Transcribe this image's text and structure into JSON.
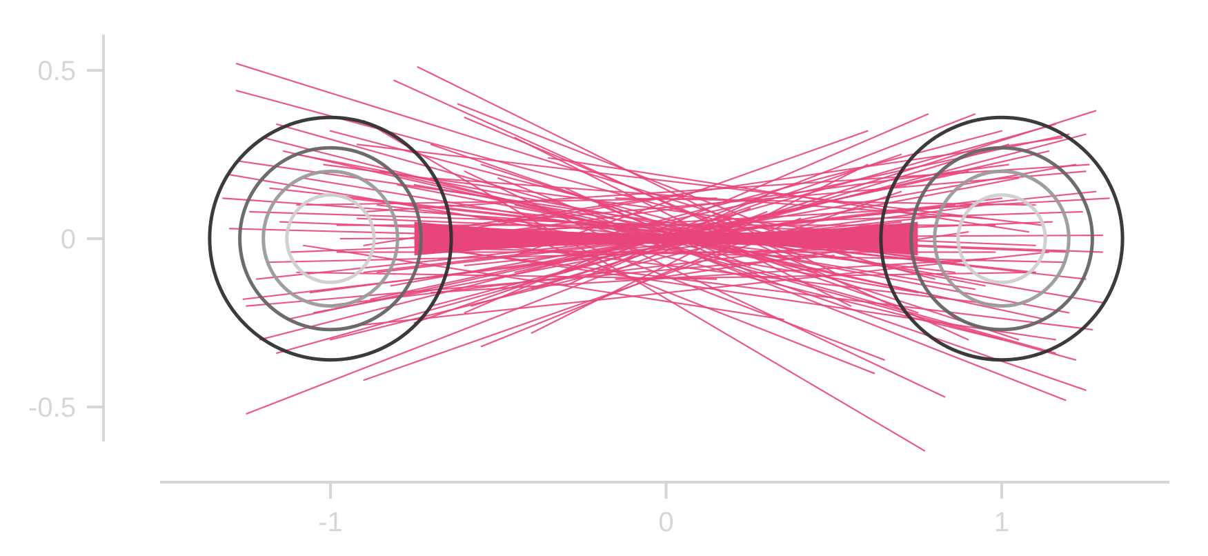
{
  "chart_data": {
    "type": "line",
    "title": "",
    "xlabel": "",
    "ylabel": "",
    "xlim": [
      -1.5,
      1.5
    ],
    "ylim": [
      -0.6,
      0.6
    ],
    "grid": false,
    "legend": "none",
    "xticks": [
      {
        "value": -1,
        "label": "-1"
      },
      {
        "value": 0,
        "label": "0"
      },
      {
        "value": 1,
        "label": "1"
      }
    ],
    "yticks": [
      {
        "value": 0.5,
        "label": "0.5"
      },
      {
        "value": 0,
        "label": "0"
      },
      {
        "value": -0.5,
        "label": "-0.5"
      }
    ],
    "colors": {
      "segments": "#e8457d",
      "axis": "#d6d6d6",
      "ring_outer": "#303030",
      "ring_mid": "#646464",
      "ring_inner": "#9a9a9a",
      "ring_innermost": "#cfcfcf"
    },
    "rings": [
      {
        "cx": -1,
        "cy": 0,
        "r": 0.36,
        "shade": "ring_outer"
      },
      {
        "cx": -1,
        "cy": 0,
        "r": 0.27,
        "shade": "ring_mid"
      },
      {
        "cx": -1,
        "cy": 0,
        "r": 0.2,
        "shade": "ring_inner"
      },
      {
        "cx": -1,
        "cy": 0,
        "r": 0.13,
        "shade": "ring_innermost"
      },
      {
        "cx": 1,
        "cy": 0,
        "r": 0.36,
        "shade": "ring_outer"
      },
      {
        "cx": 1,
        "cy": 0,
        "r": 0.27,
        "shade": "ring_mid"
      },
      {
        "cx": 1,
        "cy": 0,
        "r": 0.2,
        "shade": "ring_inner"
      },
      {
        "cx": 1,
        "cy": 0,
        "r": 0.13,
        "shade": "ring_innermost"
      }
    ],
    "segments": [
      {
        "x1": -1.28,
        "y1": 0.52,
        "x2": 0.55,
        "y2": -0.05
      },
      {
        "x1": -1.28,
        "y1": 0.44,
        "x2": 0.8,
        "y2": -0.12
      },
      {
        "x1": -0.74,
        "y1": 0.51,
        "x2": 0.5,
        "y2": -0.1
      },
      {
        "x1": -0.81,
        "y1": 0.47,
        "x2": 0.9,
        "y2": -0.3
      },
      {
        "x1": -1.25,
        "y1": -0.52,
        "x2": 0.3,
        "y2": 0.08
      },
      {
        "x1": -0.9,
        "y1": -0.42,
        "x2": 0.7,
        "y2": 0.14
      },
      {
        "x1": 0.77,
        "y1": -0.63,
        "x2": -0.9,
        "y2": 0.35
      },
      {
        "x1": 0.83,
        "y1": -0.47,
        "x2": -0.6,
        "y2": 0.2
      },
      {
        "x1": 1.25,
        "y1": -0.45,
        "x2": -0.2,
        "y2": 0.05
      },
      {
        "x1": 1.19,
        "y1": -0.48,
        "x2": -0.5,
        "y2": 0.18
      },
      {
        "x1": 1.28,
        "y1": 0.38,
        "x2": -0.4,
        "y2": -0.15
      },
      {
        "x1": 1.25,
        "y1": 0.31,
        "x2": -0.7,
        "y2": -0.2
      },
      {
        "x1": 0.78,
        "y1": 0.37,
        "x2": -0.6,
        "y2": -0.22
      },
      {
        "x1": 0.92,
        "y1": 0.37,
        "x2": -0.3,
        "y2": -0.1
      },
      {
        "x1": -1.32,
        "y1": 0.12,
        "x2": 0.4,
        "y2": 0.0
      },
      {
        "x1": -1.3,
        "y1": 0.03,
        "x2": 0.6,
        "y2": -0.02
      },
      {
        "x1": -1.26,
        "y1": -0.18,
        "x2": 0.7,
        "y2": 0.05
      },
      {
        "x1": -1.21,
        "y1": -0.3,
        "x2": 0.2,
        "y2": 0.06
      },
      {
        "x1": -1.27,
        "y1": 0.23,
        "x2": 0.9,
        "y2": -0.08
      },
      {
        "x1": -1.2,
        "y1": 0.3,
        "x2": 0.1,
        "y2": -0.03
      },
      {
        "x1": 1.32,
        "y1": 0.12,
        "x2": -0.5,
        "y2": 0.02
      },
      {
        "x1": 1.3,
        "y1": -0.04,
        "x2": -0.6,
        "y2": 0.03
      },
      {
        "x1": 1.27,
        "y1": -0.27,
        "x2": -0.7,
        "y2": -0.03
      },
      {
        "x1": 1.22,
        "y1": -0.36,
        "x2": -0.2,
        "y2": 0.03
      },
      {
        "x1": 1.26,
        "y1": 0.22,
        "x2": -0.9,
        "y2": 0.08
      },
      {
        "x1": 1.2,
        "y1": 0.31,
        "x2": -0.1,
        "y2": 0.03
      },
      {
        "x1": -0.6,
        "y1": 0.36,
        "x2": 0.4,
        "y2": -0.06
      },
      {
        "x1": -0.55,
        "y1": -0.32,
        "x2": 0.4,
        "y2": 0.06
      },
      {
        "x1": 0.6,
        "y1": 0.32,
        "x2": -0.45,
        "y2": -0.05
      },
      {
        "x1": 0.65,
        "y1": -0.36,
        "x2": -0.45,
        "y2": 0.06
      },
      {
        "x1": -1.1,
        "y1": 0.25,
        "x2": 0.95,
        "y2": -0.14
      },
      {
        "x1": -1.05,
        "y1": -0.22,
        "x2": 1.05,
        "y2": 0.18
      },
      {
        "x1": -0.95,
        "y1": 0.12,
        "x2": 1.1,
        "y2": -0.1
      },
      {
        "x1": -0.9,
        "y1": -0.1,
        "x2": 1.0,
        "y2": 0.12
      },
      {
        "x1": -1.15,
        "y1": 0.05,
        "x2": 1.2,
        "y2": -0.04
      },
      {
        "x1": -1.12,
        "y1": -0.04,
        "x2": 1.15,
        "y2": 0.05
      },
      {
        "x1": -0.85,
        "y1": 0.2,
        "x2": 0.85,
        "y2": -0.18
      },
      {
        "x1": -0.88,
        "y1": -0.18,
        "x2": 0.9,
        "y2": 0.2
      },
      {
        "x1": -1.0,
        "y1": 0.32,
        "x2": 0.3,
        "y2": -0.02
      },
      {
        "x1": -1.0,
        "y1": -0.3,
        "x2": 0.3,
        "y2": 0.02
      },
      {
        "x1": 1.0,
        "y1": 0.32,
        "x2": -0.3,
        "y2": -0.02
      },
      {
        "x1": 1.0,
        "y1": -0.3,
        "x2": -0.3,
        "y2": 0.02
      },
      {
        "x1": -0.7,
        "y1": 0.28,
        "x2": 0.75,
        "y2": -0.22
      },
      {
        "x1": -0.75,
        "y1": -0.25,
        "x2": 0.7,
        "y2": 0.25
      },
      {
        "x1": -0.65,
        "y1": 0.1,
        "x2": 0.8,
        "y2": -0.06
      },
      {
        "x1": -0.6,
        "y1": -0.08,
        "x2": 0.85,
        "y2": 0.07
      },
      {
        "x1": -1.18,
        "y1": 0.15,
        "x2": 1.25,
        "y2": -0.12
      },
      {
        "x1": -1.22,
        "y1": -0.12,
        "x2": 1.28,
        "y2": 0.14
      },
      {
        "x1": -0.97,
        "y1": 0.0,
        "x2": 1.3,
        "y2": 0.01
      },
      {
        "x1": -0.92,
        "y1": 0.06,
        "x2": 1.1,
        "y2": -0.02
      },
      {
        "x1": -1.06,
        "y1": -0.16,
        "x2": 0.95,
        "y2": 0.1
      },
      {
        "x1": -1.08,
        "y1": 0.18,
        "x2": 0.92,
        "y2": -0.15
      },
      {
        "x1": -0.8,
        "y1": 0.16,
        "x2": 1.2,
        "y2": -0.22
      },
      {
        "x1": -0.82,
        "y1": -0.14,
        "x2": 1.22,
        "y2": 0.22
      },
      {
        "x1": -0.55,
        "y1": 0.22,
        "x2": 1.05,
        "y2": -0.3
      },
      {
        "x1": -0.58,
        "y1": -0.2,
        "x2": 1.02,
        "y2": 0.28
      },
      {
        "x1": -1.24,
        "y1": 0.08,
        "x2": 0.65,
        "y2": 0.02
      },
      {
        "x1": -1.19,
        "y1": -0.07,
        "x2": 0.6,
        "y2": -0.03
      },
      {
        "x1": 1.24,
        "y1": 0.08,
        "x2": -0.65,
        "y2": 0.02
      },
      {
        "x1": 1.19,
        "y1": -0.07,
        "x2": -0.6,
        "y2": -0.03
      },
      {
        "x1": -1.02,
        "y1": 0.22,
        "x2": 0.5,
        "y2": 0.02
      },
      {
        "x1": -1.02,
        "y1": -0.2,
        "x2": 0.5,
        "y2": -0.02
      },
      {
        "x1": 1.02,
        "y1": 0.22,
        "x2": -0.5,
        "y2": 0.02
      },
      {
        "x1": 1.02,
        "y1": -0.2,
        "x2": -0.5,
        "y2": -0.02
      },
      {
        "x1": -0.45,
        "y1": 0.3,
        "x2": 0.55,
        "y2": -0.2
      },
      {
        "x1": -0.4,
        "y1": -0.28,
        "x2": 0.6,
        "y2": 0.22
      },
      {
        "x1": -0.3,
        "y1": 0.15,
        "x2": 0.3,
        "y2": -0.12
      },
      {
        "x1": -0.3,
        "y1": -0.14,
        "x2": 0.3,
        "y2": 0.13
      },
      {
        "x1": -0.2,
        "y1": 0.1,
        "x2": 0.25,
        "y2": -0.08
      },
      {
        "x1": -0.2,
        "y1": -0.1,
        "x2": 0.25,
        "y2": 0.09
      },
      {
        "x1": -1.1,
        "y1": 0.1,
        "x2": 0.15,
        "y2": 0.12
      },
      {
        "x1": -1.1,
        "y1": -0.1,
        "x2": 0.15,
        "y2": -0.12
      },
      {
        "x1": 1.1,
        "y1": 0.1,
        "x2": -0.15,
        "y2": 0.12
      },
      {
        "x1": 1.1,
        "y1": -0.1,
        "x2": -0.15,
        "y2": -0.12
      },
      {
        "x1": -0.92,
        "y1": 0.28,
        "x2": 1.12,
        "y2": 0.04
      },
      {
        "x1": -0.94,
        "y1": -0.26,
        "x2": 1.14,
        "y2": -0.04
      },
      {
        "x1": -0.72,
        "y1": 0.02,
        "x2": 1.18,
        "y2": 0.3
      },
      {
        "x1": -0.74,
        "y1": -0.02,
        "x2": 1.16,
        "y2": -0.3
      },
      {
        "x1": 0.05,
        "y1": 0.13,
        "x2": -0.9,
        "y2": -0.02
      },
      {
        "x1": -0.05,
        "y1": -0.12,
        "x2": 0.9,
        "y2": 0.02
      },
      {
        "x1": -1.14,
        "y1": 0.26,
        "x2": 0.45,
        "y2": -0.1
      },
      {
        "x1": -1.13,
        "y1": -0.24,
        "x2": 0.45,
        "y2": 0.1
      },
      {
        "x1": 1.14,
        "y1": 0.26,
        "x2": -0.45,
        "y2": -0.1
      },
      {
        "x1": 1.13,
        "y1": -0.24,
        "x2": -0.45,
        "y2": 0.1
      },
      {
        "x1": -0.98,
        "y1": 0.04,
        "x2": 0.98,
        "y2": 0.04
      },
      {
        "x1": -0.98,
        "y1": -0.04,
        "x2": 0.98,
        "y2": -0.04
      },
      {
        "x1": -0.86,
        "y1": 0.1,
        "x2": 0.86,
        "y2": -0.1
      },
      {
        "x1": -0.86,
        "y1": -0.1,
        "x2": 0.86,
        "y2": 0.1
      },
      {
        "x1": -0.7,
        "y1": 0.18,
        "x2": 0.95,
        "y2": 0.06
      },
      {
        "x1": -0.7,
        "y1": -0.16,
        "x2": 0.95,
        "y2": -0.06
      },
      {
        "x1": -1.16,
        "y1": 0.34,
        "x2": 0.2,
        "y2": -0.04
      },
      {
        "x1": -1.16,
        "y1": -0.34,
        "x2": 0.2,
        "y2": 0.04
      },
      {
        "x1": 1.16,
        "y1": 0.34,
        "x2": -0.2,
        "y2": -0.04
      },
      {
        "x1": 1.16,
        "y1": -0.34,
        "x2": -0.2,
        "y2": 0.04
      },
      {
        "x1": -1.3,
        "y1": 0.19,
        "x2": 0.75,
        "y2": -0.16
      },
      {
        "x1": 1.3,
        "y1": -0.19,
        "x2": -0.75,
        "y2": 0.16
      },
      {
        "x1": -0.62,
        "y1": 0.4,
        "x2": 0.35,
        "y2": 0.02
      },
      {
        "x1": 0.62,
        "y1": -0.4,
        "x2": -0.35,
        "y2": -0.02
      },
      {
        "x1": -0.5,
        "y1": 0.05,
        "x2": 1.25,
        "y2": 0.2
      },
      {
        "x1": 0.5,
        "y1": -0.05,
        "x2": -1.25,
        "y2": -0.2
      },
      {
        "x1": -0.35,
        "y1": 0.24,
        "x2": 1.08,
        "y2": 0.02
      },
      {
        "x1": 0.35,
        "y1": -0.24,
        "x2": -1.08,
        "y2": -0.02
      }
    ]
  }
}
